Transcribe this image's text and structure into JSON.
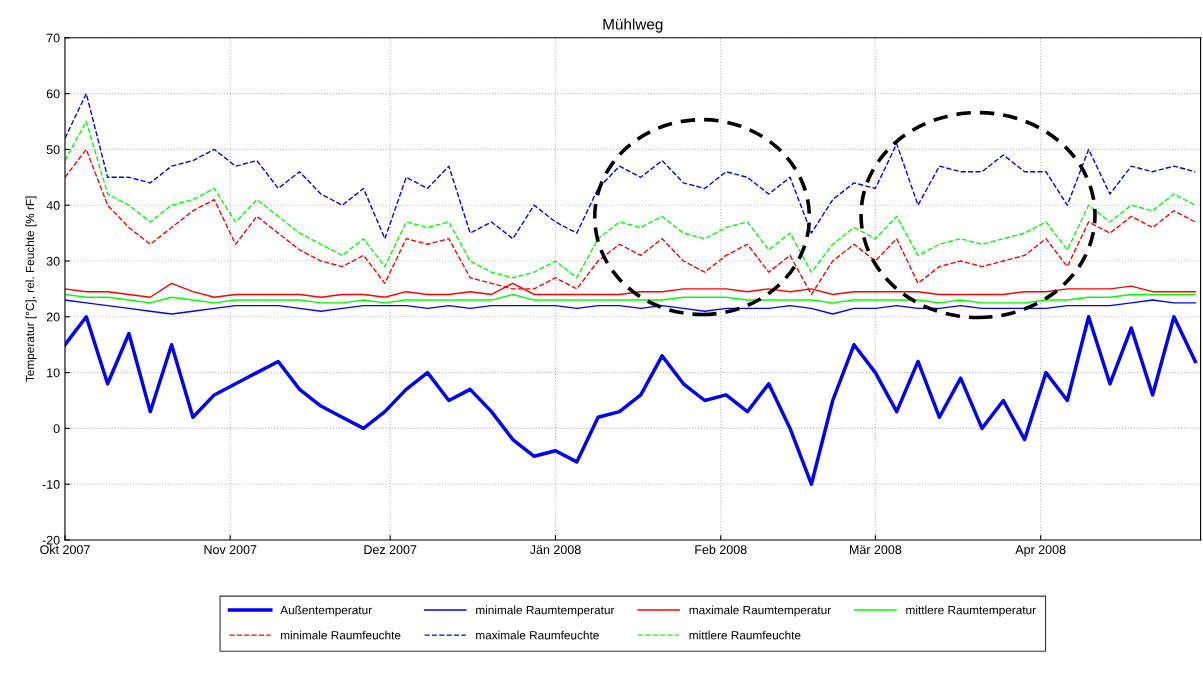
{
  "chart_data": {
    "type": "line",
    "title": "Mühlweg",
    "ylabel": "Temperatur [°C], rel. Feuchte [% rF]",
    "x": [
      "2007-10-01",
      "2007-10-05",
      "2007-10-09",
      "2007-10-13",
      "2007-10-17",
      "2007-10-21",
      "2007-10-25",
      "2007-10-29",
      "2007-11-02",
      "2007-11-06",
      "2007-11-10",
      "2007-11-14",
      "2007-11-18",
      "2007-11-22",
      "2007-11-26",
      "2007-11-30",
      "2007-12-04",
      "2007-12-08",
      "2007-12-12",
      "2007-12-16",
      "2007-12-20",
      "2007-12-24",
      "2007-12-28",
      "2008-01-01",
      "2008-01-05",
      "2008-01-09",
      "2008-01-13",
      "2008-01-17",
      "2008-01-21",
      "2008-01-25",
      "2008-01-29",
      "2008-02-02",
      "2008-02-06",
      "2008-02-10",
      "2008-02-14",
      "2008-02-18",
      "2008-02-22",
      "2008-02-26",
      "2008-03-01",
      "2008-03-05",
      "2008-03-09",
      "2008-03-13",
      "2008-03-17",
      "2008-03-21",
      "2008-03-25",
      "2008-03-29",
      "2008-04-02",
      "2008-04-06",
      "2008-04-10",
      "2008-04-14",
      "2008-04-18",
      "2008-04-22",
      "2008-04-26",
      "2008-04-30"
    ],
    "series": [
      {
        "name": "Außentemperatur",
        "color": "#0000ff",
        "line_style": "solid",
        "values": [
          15,
          20,
          8,
          17,
          3,
          15,
          2,
          6,
          8,
          10,
          12,
          7,
          4,
          2,
          0,
          3,
          7,
          10,
          5,
          7,
          3,
          -2,
          -5,
          -4,
          -6,
          2,
          3,
          6,
          13,
          8,
          5,
          6,
          3,
          8,
          0,
          -10,
          5,
          15,
          10,
          3,
          12,
          2,
          9,
          0,
          5,
          -2,
          10,
          5,
          20,
          8,
          18,
          6,
          20,
          12
        ]
      },
      {
        "name": "minimale Raumtemperatur",
        "color": "#0000ff",
        "line_style": "solid",
        "values": [
          23,
          22.5,
          22,
          21.5,
          21,
          20.5,
          21,
          21.5,
          22,
          22,
          22,
          21.5,
          21,
          21.5,
          22,
          22,
          22,
          21.5,
          22,
          21.5,
          22,
          22,
          22,
          22,
          21.5,
          22,
          22,
          21.5,
          22,
          21.5,
          21,
          21.5,
          21.5,
          21.5,
          22,
          21.5,
          20.5,
          21.5,
          21.5,
          22,
          21.5,
          21.5,
          22,
          21.5,
          21.5,
          21.5,
          21.5,
          22,
          22,
          22,
          22.5,
          23,
          22.5,
          22.5
        ]
      },
      {
        "name": "maximale Raumtemperatur",
        "color": "#ff0000",
        "line_style": "solid",
        "values": [
          25,
          24.5,
          24.5,
          24,
          23.5,
          26,
          24.5,
          23.5,
          24,
          24,
          24,
          24,
          23.5,
          24,
          24,
          23.5,
          24.5,
          24,
          24,
          24.5,
          24,
          26,
          24,
          24,
          24,
          24,
          24,
          24.5,
          24.5,
          25,
          25,
          25,
          24.5,
          25,
          24.5,
          25,
          24,
          24.5,
          24.5,
          24.5,
          24.5,
          24,
          24,
          24,
          24,
          24.5,
          24.5,
          25,
          25,
          25,
          25.5,
          24.5,
          24.5,
          24.5
        ]
      },
      {
        "name": "mittlere Raumtemperatur",
        "color": "#00ff00",
        "line_style": "solid",
        "values": [
          24,
          23.5,
          23.5,
          23,
          22.5,
          23.5,
          23,
          22.5,
          23,
          23,
          23,
          23,
          22.5,
          22.5,
          23,
          22.5,
          23,
          23,
          23,
          23,
          23,
          24,
          23,
          23,
          23,
          23,
          23,
          23,
          23,
          23.5,
          23.5,
          23.5,
          23,
          23,
          23,
          23,
          22.5,
          23,
          23,
          23,
          23,
          22.5,
          23,
          22.5,
          22.5,
          22.5,
          23,
          23,
          23.5,
          23.5,
          24,
          24,
          24,
          24
        ]
      },
      {
        "name": "minimale Raumfeuchte",
        "color": "#ff0000",
        "line_style": "dashed",
        "values": [
          45,
          50,
          40,
          36,
          33,
          36,
          39,
          41,
          33,
          38,
          35,
          32,
          30,
          29,
          31,
          26,
          34,
          33,
          34,
          27,
          26,
          25,
          25,
          27,
          25,
          30,
          33,
          31,
          34,
          30,
          28,
          31,
          33,
          28,
          31,
          24,
          30,
          33,
          30,
          34,
          26,
          29,
          30,
          29,
          30,
          31,
          34,
          29,
          37,
          35,
          38,
          36,
          39,
          37
        ]
      },
      {
        "name": "maximale Raumfeuchte",
        "color": "#0000ff",
        "line_style": "dashed",
        "values": [
          52,
          60,
          45,
          45,
          44,
          47,
          48,
          50,
          47,
          48,
          43,
          46,
          42,
          40,
          43,
          34,
          45,
          43,
          47,
          35,
          37,
          34,
          40,
          37,
          35,
          43,
          47,
          45,
          48,
          44,
          43,
          46,
          45,
          42,
          45,
          35,
          41,
          44,
          43,
          51,
          40,
          47,
          46,
          46,
          49,
          46,
          46,
          40,
          50,
          42,
          47,
          46,
          47,
          46
        ]
      },
      {
        "name": "mittlere Raumfeuchte",
        "color": "#00ff00",
        "line_style": "dashed",
        "values": [
          48,
          55,
          42,
          40,
          37,
          40,
          41,
          43,
          37,
          41,
          38,
          35,
          33,
          31,
          34,
          29,
          37,
          36,
          37,
          30,
          28,
          27,
          28,
          30,
          27,
          34,
          37,
          36,
          38,
          35,
          34,
          36,
          37,
          32,
          35,
          28,
          33,
          36,
          34,
          38,
          31,
          33,
          34,
          33,
          34,
          35,
          37,
          32,
          40,
          37,
          40,
          39,
          42,
          40
        ]
      }
    ],
    "xlim": [
      "2007-10-01",
      "2008-05-01"
    ],
    "xticks": [
      {
        "value": "2007-10-01",
        "label": "Okt 2007"
      },
      {
        "value": "2007-11-01",
        "label": "Nov 2007"
      },
      {
        "value": "2007-12-01",
        "label": "Dez 2007"
      },
      {
        "value": "2008-01-01",
        "label": "Jän 2008"
      },
      {
        "value": "2008-02-01",
        "label": "Feb 2008"
      },
      {
        "value": "2008-03-01",
        "label": "Mär 2008"
      },
      {
        "value": "2008-04-01",
        "label": "Apr 2008"
      }
    ],
    "ylim": [
      -20,
      70
    ],
    "yticks": [
      -20,
      -10,
      0,
      10,
      20,
      30,
      40,
      50,
      60,
      70
    ],
    "grid": true,
    "legend": "bottom"
  }
}
